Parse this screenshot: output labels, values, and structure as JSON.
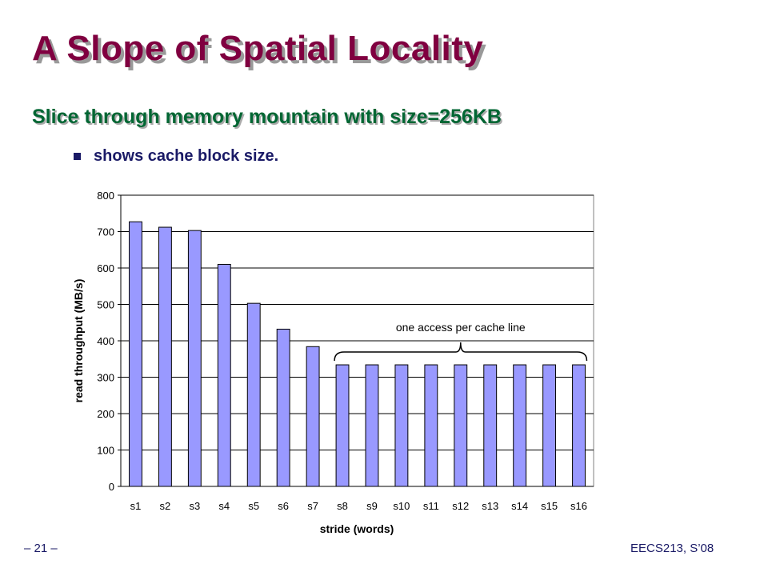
{
  "slide": {
    "title": "A Slope of Spatial Locality",
    "subtitle": "Slice through memory mountain with size=256KB",
    "bullet": "shows cache block size.",
    "footer_left": "– 21 –",
    "footer_right": "EECS213, S’08"
  },
  "colors": {
    "title": "#800040",
    "subtitle": "#006633",
    "bar_fill": "#9999ff",
    "bar_stroke": "#000000"
  },
  "chart_data": {
    "type": "bar",
    "categories": [
      "s1",
      "s2",
      "s3",
      "s4",
      "s5",
      "s6",
      "s7",
      "s8",
      "s9",
      "s10",
      "s11",
      "s12",
      "s13",
      "s14",
      "s15",
      "s16"
    ],
    "values": [
      727,
      712,
      703,
      610,
      503,
      432,
      384,
      334,
      334,
      334,
      334,
      334,
      334,
      334,
      334,
      334
    ],
    "xlabel": "stride (words)",
    "ylabel": "read throughput (MB/s)",
    "ylim": [
      0,
      800
    ],
    "yticks": [
      0,
      100,
      200,
      300,
      400,
      500,
      600,
      700,
      800
    ],
    "grid": true,
    "annotation": {
      "text": "one access per cache line",
      "from_category": "s8",
      "to_category": "s16"
    }
  }
}
